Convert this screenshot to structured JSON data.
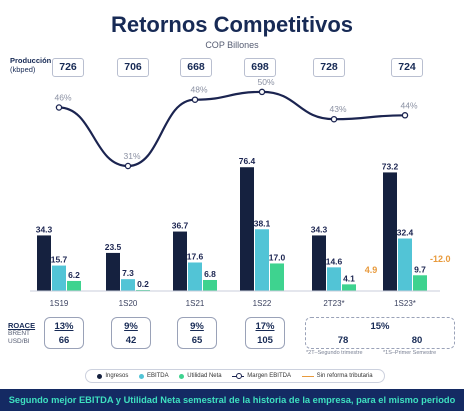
{
  "header": {
    "title": "Retornos Competitivos",
    "subtitle": "COP Billones"
  },
  "production": {
    "label_bold": "Producción",
    "label_unit": "(kbped)",
    "values": [
      "726",
      "706",
      "668",
      "698",
      "728",
      "724"
    ]
  },
  "chart_data": {
    "type": "bar",
    "categories": [
      "1S19",
      "1S20",
      "1S21",
      "1S22",
      "2T23*",
      "1S23*"
    ],
    "series": [
      {
        "name": "Ingresos",
        "values": [
          34.3,
          23.5,
          36.7,
          76.4,
          34.3,
          73.2
        ],
        "labels": [
          "34.3",
          "23.5",
          "36.7",
          "76.4",
          "34.3",
          "73.2"
        ],
        "color": "#15213f"
      },
      {
        "name": "EBITDA",
        "values": [
          15.7,
          7.3,
          17.6,
          38.1,
          14.6,
          32.4
        ],
        "labels": [
          "15.7",
          "7.3",
          "17.6",
          "38.1",
          "14.6",
          "32.4"
        ],
        "color": "#52c4d6"
      },
      {
        "name": "Utilidad Neta",
        "values": [
          6.2,
          0.2,
          6.8,
          17.0,
          4.1,
          9.7
        ],
        "labels": [
          "6.2",
          "0.2",
          "6.8",
          "17.0",
          "4.1",
          "9.7"
        ],
        "color": "#3ed38f"
      }
    ],
    "margin_series": {
      "name": "Margen EBITDA",
      "values": [
        46,
        31,
        48,
        50,
        43,
        44
      ],
      "labels": [
        "46%",
        "31%",
        "48%",
        "50%",
        "43%",
        "44%"
      ]
    },
    "reform_annotations": {
      "name": "Sin reforma tributaria",
      "items": [
        {
          "category": "2T23*",
          "value": 4.9,
          "label": "4.9"
        },
        {
          "category": "1S23*",
          "value": -12.0,
          "label": "-12.0"
        }
      ],
      "color": "#e89a3c"
    },
    "legend_position": "bottom",
    "grid": false
  },
  "roace": {
    "label_bold": "ROACE",
    "label_sub1": "BRENT",
    "label_sub2": "USD/Bl",
    "boxes": [
      {
        "roace": "13%",
        "brent": "66"
      },
      {
        "roace": "9%",
        "brent": "42"
      },
      {
        "roace": "9%",
        "brent": "65"
      },
      {
        "roace": "17%",
        "brent": "105"
      }
    ],
    "merged": {
      "roace": "15%",
      "brent_left": "78",
      "brent_right": "80"
    }
  },
  "footnotes": {
    "left": "*2T–Segundo trimestre",
    "right": "*1S–Primer Semestre"
  },
  "legend": {
    "ingresos": "Ingresos",
    "ebitda": "EBITDA",
    "utilidad": "Utilidad Neta",
    "margen": "Margen EBITDA",
    "reforma": "Sin reforma tributaria"
  },
  "banner": {
    "text": "Segundo mejor EBITDA y Utilidad Neta semestral de la historia de la empresa, para el mismo periodo"
  },
  "colors": {
    "navy": "#15213f",
    "ebitda": "#52c4d6",
    "utilidad": "#3ed38f",
    "orange": "#e89a3c",
    "banner_bg": "#142a63",
    "banner_text": "#3ee0c0"
  }
}
